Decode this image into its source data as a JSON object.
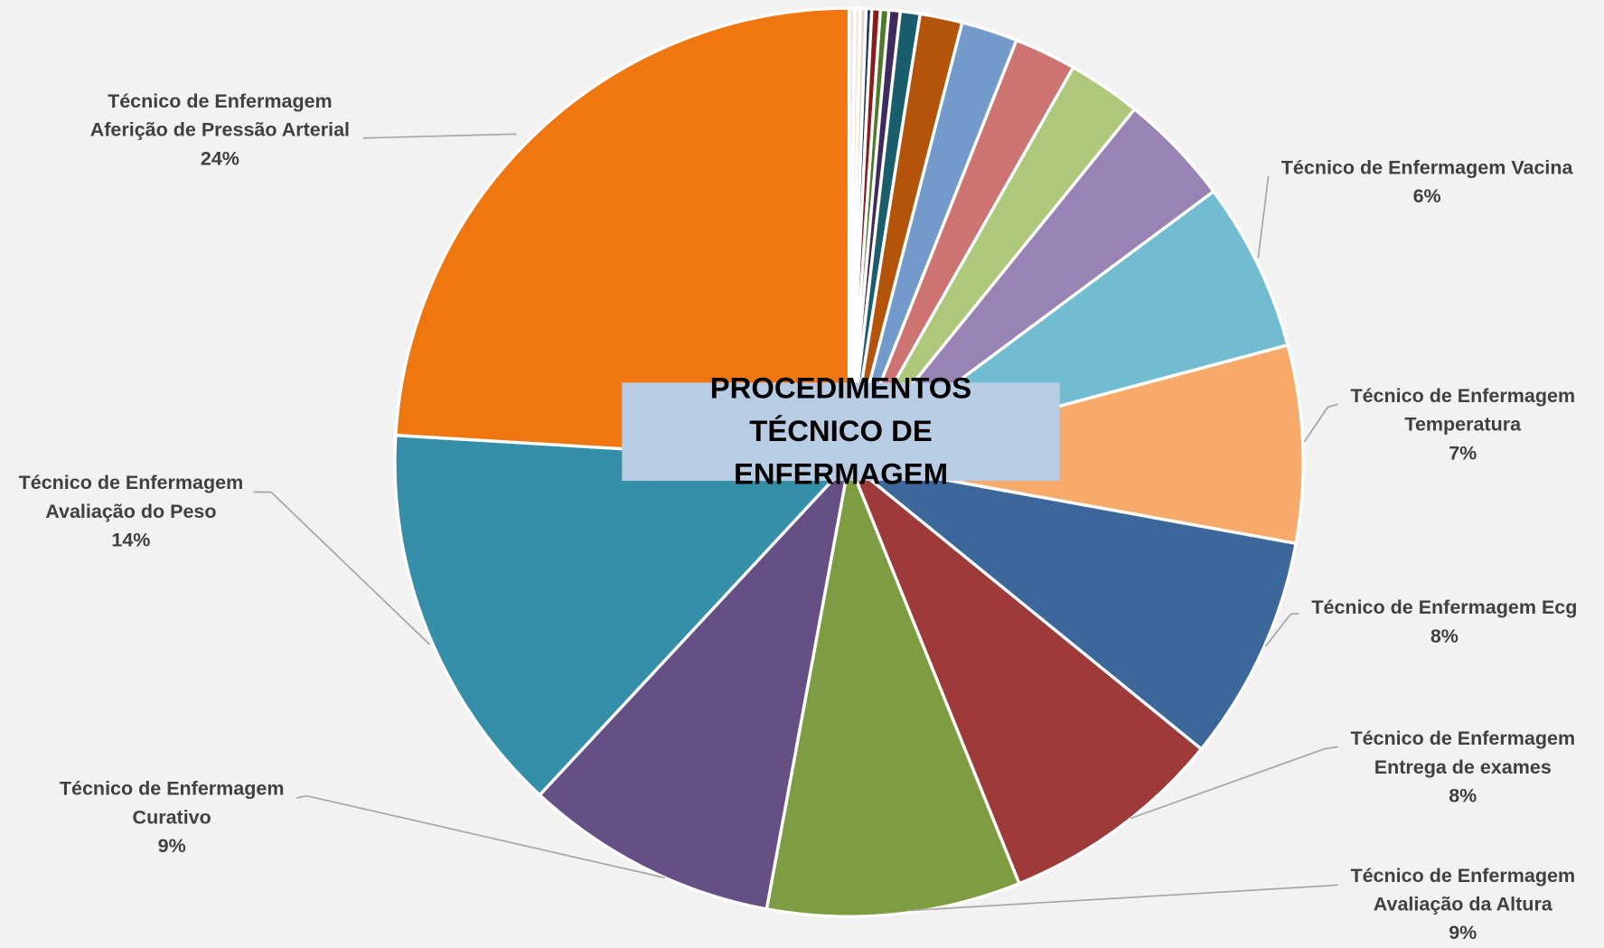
{
  "chart_data": {
    "type": "pie",
    "title": "PROCEDIMENTOS TÉCNICO DE ENFERMAGEM",
    "categories": [
      null,
      null,
      null,
      null,
      null,
      null,
      null,
      null,
      null,
      null,
      null,
      null,
      null,
      "Técnico de Enfermagem Vacina",
      "Técnico de Enfermagem Temperatura",
      "Técnico de Enfermagem Ecg",
      "Técnico de Enfermagem Entrega de exames",
      "Técnico de Enfermagem Avaliação da Altura",
      "Técnico de Enfermagem Curativo",
      "Técnico de Enfermagem Avaliação do Peso",
      "Técnico de Enfermagem Aferição de Pressão Arterial"
    ],
    "values": [
      0.2,
      0.2,
      0.2,
      0.2,
      0.3,
      0.3,
      0.4,
      0.7,
      1.5,
      2,
      2.2,
      2.6,
      4,
      6,
      7,
      8,
      8,
      9,
      9,
      14,
      24
    ],
    "value_labels": [
      null,
      null,
      null,
      null,
      null,
      null,
      null,
      null,
      null,
      null,
      null,
      null,
      null,
      "6%",
      "7%",
      "8%",
      "8%",
      "9%",
      "9%",
      "14%",
      "24%"
    ],
    "colors": [
      "#e7e6e6",
      "#fbe5d6",
      "#ddd9c3",
      "#1f3864",
      "#8b1a1a",
      "#4e7a2a",
      "#3f2b60",
      "#1a5e6e",
      "#b4540b",
      "#729acb",
      "#cd7371",
      "#adc87a",
      "#9982b4",
      "#71bcd0",
      "#f8aa6b",
      "#3b679b",
      "#9e3a39",
      "#7e9d42",
      "#664f84",
      "#358fa8",
      "#f07610"
    ]
  }
}
